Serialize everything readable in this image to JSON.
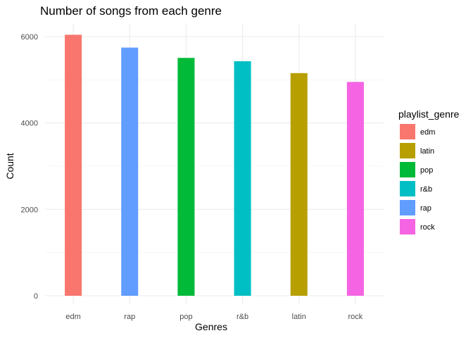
{
  "chart_data": {
    "type": "bar",
    "title": "Number of songs from each genre",
    "xlabel": "Genres",
    "ylabel": "Count",
    "categories": [
      "edm",
      "rap",
      "pop",
      "r&b",
      "latin",
      "rock"
    ],
    "values": [
      6043,
      5746,
      5507,
      5431,
      5155,
      4951
    ],
    "colors": [
      "#F8766D",
      "#619CFF",
      "#00BA38",
      "#00BFC4",
      "#B79F00",
      "#F564E3"
    ],
    "yticks": [
      0,
      2000,
      4000,
      6000
    ],
    "ylim": [
      0,
      6200
    ],
    "grid": true,
    "legend": {
      "title": "playlist_genre",
      "position": "right",
      "items": [
        {
          "label": "edm",
          "color": "#F8766D"
        },
        {
          "label": "latin",
          "color": "#B79F00"
        },
        {
          "label": "pop",
          "color": "#00BA38"
        },
        {
          "label": "r&b",
          "color": "#00BFC4"
        },
        {
          "label": "rap",
          "color": "#619CFF"
        },
        {
          "label": "rock",
          "color": "#F564E3"
        }
      ]
    }
  }
}
